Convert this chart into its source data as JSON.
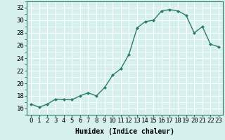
{
  "x": [
    0,
    1,
    2,
    3,
    4,
    5,
    6,
    7,
    8,
    9,
    10,
    11,
    12,
    13,
    14,
    15,
    16,
    17,
    18,
    19,
    20,
    21,
    22,
    23
  ],
  "y": [
    16.7,
    16.2,
    16.7,
    17.5,
    17.4,
    17.4,
    18.0,
    18.5,
    18.0,
    19.3,
    21.3,
    22.3,
    24.6,
    28.8,
    29.8,
    30.0,
    31.5,
    31.7,
    31.5,
    30.8,
    28.0,
    29.0,
    26.2,
    25.8
  ],
  "line_color": "#2e7b6e",
  "marker": "D",
  "marker_size": 2.0,
  "bg_color": "#d6f0ee",
  "grid_color": "#ffffff",
  "xlabel": "Humidex (Indice chaleur)",
  "ylim": [
    15,
    33
  ],
  "xlim": [
    -0.5,
    23.5
  ],
  "yticks": [
    16,
    18,
    20,
    22,
    24,
    26,
    28,
    30,
    32
  ],
  "xticks": [
    0,
    1,
    2,
    3,
    4,
    5,
    6,
    7,
    8,
    9,
    10,
    11,
    12,
    13,
    14,
    15,
    16,
    17,
    18,
    19,
    20,
    21,
    22,
    23
  ],
  "xlabel_fontsize": 7,
  "tick_fontsize": 6.5,
  "linewidth": 1.0
}
